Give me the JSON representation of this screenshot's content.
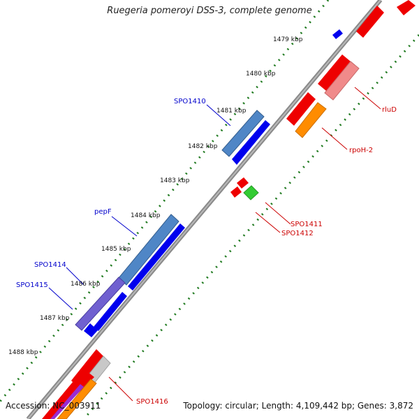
{
  "title": "Ruegeria pomeroyi DSS-3, complete genome",
  "accession_text": "Accession: NC_003911",
  "topology_text": "Topology: circular; Length: 4,109,442 bp; Genes: 3,872",
  "kbp_labels": [
    {
      "id": "kbp-1479",
      "text": "1479 kbp"
    },
    {
      "id": "kbp-1480",
      "text": "1480 kbp"
    },
    {
      "id": "kbp-1481",
      "text": "1481 kbp"
    },
    {
      "id": "kbp-1482",
      "text": "1482 kbp"
    },
    {
      "id": "kbp-1483",
      "text": "1483 kbp"
    },
    {
      "id": "kbp-1484",
      "text": "1484 kbp"
    },
    {
      "id": "kbp-1485",
      "text": "1485 kbp"
    },
    {
      "id": "kbp-1486",
      "text": "1486 kbp"
    },
    {
      "id": "kbp-1487",
      "text": "1487 kbp"
    },
    {
      "id": "kbp-1488",
      "text": "1488 kbp"
    }
  ],
  "gene_labels": [
    {
      "id": "SPO1410",
      "text": "SPO1410",
      "color": "#0000cc"
    },
    {
      "id": "pepF",
      "text": "pepF",
      "color": "#0000cc"
    },
    {
      "id": "SPO1414",
      "text": "SPO1414",
      "color": "#0000cc"
    },
    {
      "id": "SPO1415",
      "text": "SPO1415",
      "color": "#0000cc"
    },
    {
      "id": "rluD",
      "text": "rluD",
      "color": "#cc0000"
    },
    {
      "id": "rpoH-2",
      "text": "rpoH-2",
      "color": "#cc0000"
    },
    {
      "id": "SPO1411",
      "text": "SPO1411",
      "color": "#cc0000"
    },
    {
      "id": "SPO1412",
      "text": "SPO1412",
      "color": "#cc0000"
    },
    {
      "id": "SPO1416",
      "text": "SPO1416",
      "color": "#cc0000"
    }
  ],
  "colors": {
    "backbone": "#7a7a7a",
    "tick_dots": "#1f7a1f",
    "forward_gene": "#0000ee",
    "forward_feature": "#4f86c6",
    "reverse_gene": "#ee0000",
    "reverse_feature_pink": "#f08a8a",
    "orange_feature": "#ff8c00",
    "green_feature": "#33cc33",
    "purple_feature": "#7060d0",
    "grey_feature": "#c8c8c8"
  }
}
